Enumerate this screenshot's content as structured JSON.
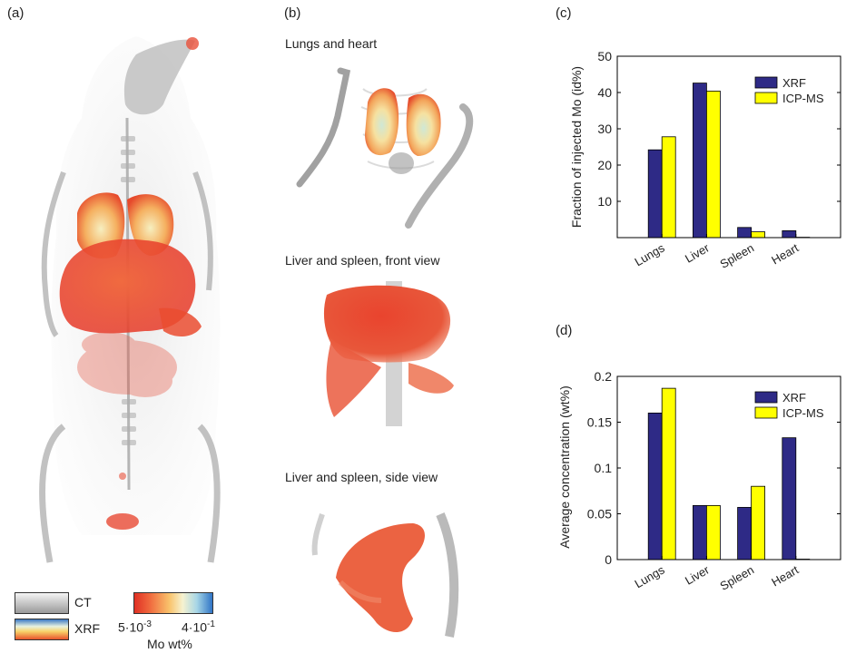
{
  "panels": {
    "a": {
      "label": "(a)"
    },
    "b": {
      "label": "(b)",
      "captions": [
        "Lungs and heart",
        "Liver and spleen, front view",
        "Liver and spleen, side view"
      ]
    },
    "c": {
      "label": "(c)"
    },
    "d": {
      "label": "(d)"
    }
  },
  "legend": {
    "ct": "CT",
    "xrf": "XRF",
    "scale_min_base": "5·10",
    "scale_min_exp": "-3",
    "scale_max_base": "4·10",
    "scale_max_exp": "-1",
    "scale_label": "Mo wt%"
  },
  "colors": {
    "xrf": "#2e2a86",
    "icpms": "#ffff00",
    "axis": "#000000"
  },
  "chart_data": [
    {
      "type": "bar",
      "ylabel": "Fraction of injected Mo (id%)",
      "categories": [
        "Lungs",
        "Liver",
        "Spleen",
        "Heart"
      ],
      "series": [
        {
          "name": "XRF",
          "values": [
            24.2,
            42.6,
            2.8,
            1.9
          ]
        },
        {
          "name": "ICP-MS",
          "values": [
            27.8,
            40.4,
            1.6,
            0.1
          ]
        }
      ],
      "ylim": [
        0,
        50
      ],
      "yticks": [
        "10",
        "20",
        "30",
        "40",
        "50"
      ],
      "ytick_values": [
        10,
        20,
        30,
        40,
        50
      ],
      "legend_position": "top-right",
      "grid": false
    },
    {
      "type": "bar",
      "ylabel": "Average concentration (wt%)",
      "categories": [
        "Lungs",
        "Liver",
        "Spleen",
        "Heart"
      ],
      "series": [
        {
          "name": "XRF",
          "values": [
            0.16,
            0.059,
            0.057,
            0.133
          ]
        },
        {
          "name": "ICP-MS",
          "values": [
            0.187,
            0.059,
            0.08,
            0.0005
          ]
        }
      ],
      "ylim": [
        0,
        0.2
      ],
      "yticks": [
        "0",
        "0.05",
        "0.1",
        "0.15",
        "0.2"
      ],
      "ytick_values": [
        0,
        0.05,
        0.1,
        0.15,
        0.2
      ],
      "legend_position": "top-right",
      "grid": false
    }
  ]
}
